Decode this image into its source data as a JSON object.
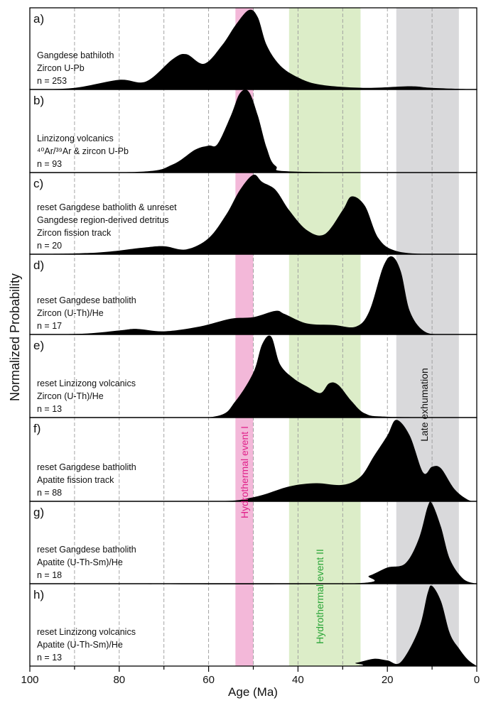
{
  "chart_data": {
    "type": "area",
    "xlabel": "Age (Ma)",
    "ylabel": "Normalized Probability",
    "xlim": [
      100,
      0
    ],
    "x_reversed": true,
    "x_ticks": [
      100,
      80,
      60,
      40,
      20,
      0
    ],
    "dashed_gridlines": [
      90,
      80,
      70,
      60,
      50,
      40,
      30,
      20,
      10
    ],
    "shaded_bands": [
      {
        "name": "Hydrothermal event I",
        "range": [
          54,
          50
        ],
        "color": "#f3b8d9",
        "label_color": "#e0218a"
      },
      {
        "name": "Hydrothermal event II",
        "range": [
          42,
          26
        ],
        "color": "#dcedc8",
        "label_color": "#2aa537"
      },
      {
        "name": "Late exhumation",
        "range": [
          18,
          4
        ],
        "color": "#d9d9db",
        "label_color": "#111111"
      }
    ],
    "panels": [
      {
        "label": "a)",
        "lines": [
          "Gangdese bathiloth",
          "Zircon U-Pb",
          "n = 253"
        ],
        "peaks": [
          [
            100,
            0
          ],
          [
            90,
            0.02
          ],
          [
            80,
            0.12
          ],
          [
            74,
            0.1
          ],
          [
            68,
            0.38
          ],
          [
            65,
            0.44
          ],
          [
            61,
            0.32
          ],
          [
            57,
            0.55
          ],
          [
            54,
            0.8
          ],
          [
            51,
            0.99
          ],
          [
            49,
            0.9
          ],
          [
            47,
            0.55
          ],
          [
            44,
            0.3
          ],
          [
            40,
            0.15
          ],
          [
            35,
            0.06
          ],
          [
            25,
            0.02
          ],
          [
            15,
            0.04
          ],
          [
            10,
            0.02
          ],
          [
            0,
            0
          ]
        ]
      },
      {
        "label": "b)",
        "lines": [
          "Linzizong volcanics",
          "⁴⁰Ar/³⁹Ar & zircon U-Pb",
          "n = 93"
        ],
        "peaks": [
          [
            100,
            0
          ],
          [
            75,
            0.01
          ],
          [
            68,
            0.1
          ],
          [
            63,
            0.28
          ],
          [
            60,
            0.33
          ],
          [
            58,
            0.35
          ],
          [
            55,
            0.7
          ],
          [
            53,
            0.97
          ],
          [
            51,
            0.99
          ],
          [
            49,
            0.7
          ],
          [
            47,
            0.3
          ],
          [
            45,
            0.08
          ],
          [
            40,
            0.01
          ],
          [
            0,
            0
          ]
        ]
      },
      {
        "label": "c)",
        "lines": [
          "reset Gangdese batholith & unreset",
          "Gangdese region-derived detritus",
          "Zircon fission track",
          "n = 20"
        ],
        "peaks": [
          [
            100,
            0
          ],
          [
            85,
            0.02
          ],
          [
            75,
            0.08
          ],
          [
            70,
            0.1
          ],
          [
            65,
            0.06
          ],
          [
            60,
            0.2
          ],
          [
            56,
            0.5
          ],
          [
            53,
            0.8
          ],
          [
            50,
            0.99
          ],
          [
            48,
            0.9
          ],
          [
            45,
            0.8
          ],
          [
            42,
            0.55
          ],
          [
            38,
            0.3
          ],
          [
            34,
            0.25
          ],
          [
            30,
            0.55
          ],
          [
            28,
            0.72
          ],
          [
            25,
            0.6
          ],
          [
            22,
            0.2
          ],
          [
            18,
            0.04
          ],
          [
            10,
            0
          ],
          [
            0,
            0
          ]
        ]
      },
      {
        "label": "d)",
        "lines": [
          "reset Gangdese batholith",
          "Zircon (U-Th)/He",
          "n = 17"
        ],
        "peaks": [
          [
            100,
            0
          ],
          [
            88,
            0.01
          ],
          [
            80,
            0.05
          ],
          [
            76,
            0.07
          ],
          [
            70,
            0.04
          ],
          [
            62,
            0.1
          ],
          [
            55,
            0.2
          ],
          [
            50,
            0.22
          ],
          [
            45,
            0.3
          ],
          [
            43,
            0.26
          ],
          [
            38,
            0.14
          ],
          [
            32,
            0.12
          ],
          [
            27,
            0.1
          ],
          [
            24,
            0.3
          ],
          [
            21,
            0.85
          ],
          [
            19,
            0.99
          ],
          [
            17,
            0.8
          ],
          [
            15,
            0.3
          ],
          [
            12,
            0.05
          ],
          [
            8,
            0
          ],
          [
            0,
            0
          ]
        ]
      },
      {
        "label": "e)",
        "lines": [
          "reset Linzizong volcanics",
          "Zircon (U-Th)/He",
          "n = 13"
        ],
        "peaks": [
          [
            100,
            0
          ],
          [
            70,
            0
          ],
          [
            58,
            0.02
          ],
          [
            54,
            0.2
          ],
          [
            50,
            0.55
          ],
          [
            48,
            0.9
          ],
          [
            46,
            0.99
          ],
          [
            44,
            0.65
          ],
          [
            41,
            0.48
          ],
          [
            38,
            0.38
          ],
          [
            35,
            0.3
          ],
          [
            33,
            0.42
          ],
          [
            31,
            0.4
          ],
          [
            28,
            0.2
          ],
          [
            25,
            0.05
          ],
          [
            20,
            0.01
          ],
          [
            0,
            0
          ]
        ]
      },
      {
        "label": "f)",
        "lines": [
          "reset Gangdese batholith",
          "Apatite fission track",
          "n = 88"
        ],
        "peaks": [
          [
            100,
            0
          ],
          [
            60,
            0
          ],
          [
            50,
            0.05
          ],
          [
            42,
            0.18
          ],
          [
            36,
            0.22
          ],
          [
            30,
            0.2
          ],
          [
            26,
            0.3
          ],
          [
            23,
            0.55
          ],
          [
            20,
            0.8
          ],
          [
            18,
            0.99
          ],
          [
            15,
            0.8
          ],
          [
            12,
            0.35
          ],
          [
            10,
            0.42
          ],
          [
            8,
            0.4
          ],
          [
            5,
            0.15
          ],
          [
            2,
            0.02
          ],
          [
            0,
            0
          ]
        ]
      },
      {
        "label": "g)",
        "lines": [
          "reset Gangdese batholith",
          "Apatite (U-Th-Sm)/He",
          "n = 18"
        ],
        "peaks": [
          [
            100,
            0
          ],
          [
            30,
            0
          ],
          [
            24,
            0.1
          ],
          [
            20,
            0.2
          ],
          [
            16,
            0.25
          ],
          [
            13,
            0.55
          ],
          [
            11,
            0.95
          ],
          [
            10,
            0.99
          ],
          [
            8,
            0.7
          ],
          [
            6,
            0.3
          ],
          [
            3,
            0.06
          ],
          [
            0,
            0
          ]
        ]
      },
      {
        "label": "h)",
        "lines": [
          "reset Linzizong volcanics",
          "Apatite (U-Th-Sm)/He",
          "n = 13"
        ],
        "peaks": [
          [
            100,
            0
          ],
          [
            32,
            0
          ],
          [
            27,
            0.04
          ],
          [
            23,
            0.09
          ],
          [
            20,
            0.07
          ],
          [
            17,
            0.05
          ],
          [
            13,
            0.45
          ],
          [
            11,
            0.9
          ],
          [
            10,
            0.99
          ],
          [
            8,
            0.8
          ],
          [
            6,
            0.4
          ],
          [
            4,
            0.22
          ],
          [
            2,
            0.08
          ],
          [
            0,
            0
          ]
        ]
      }
    ]
  }
}
